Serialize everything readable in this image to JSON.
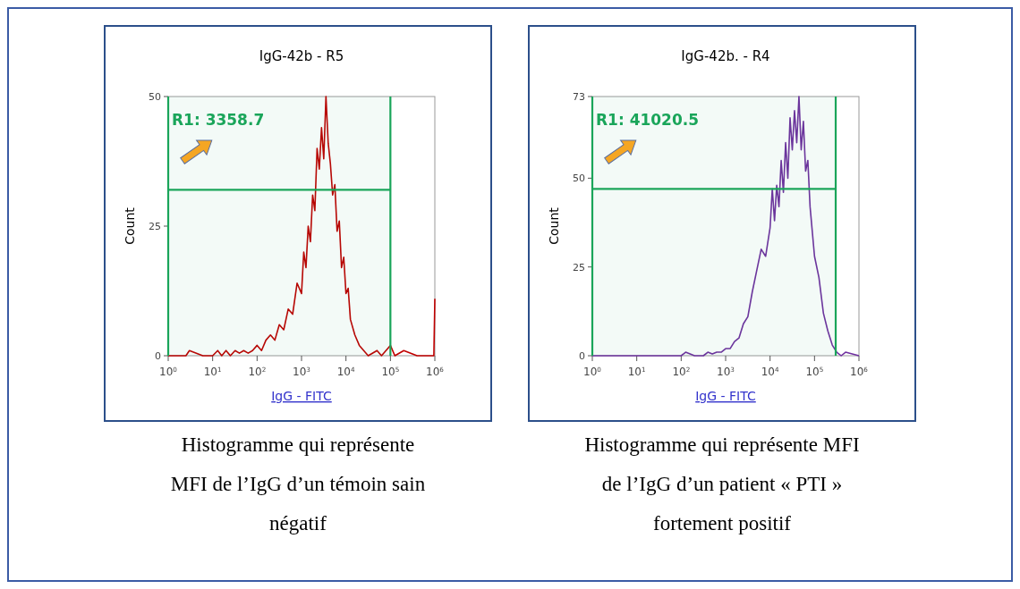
{
  "chart_data": [
    {
      "type": "line",
      "title": "IgG-42b - R5",
      "xlabel": "IgG - FITC",
      "ylabel": "Count",
      "log": "x",
      "xlim": [
        1,
        1000000
      ],
      "ylim": [
        0,
        50
      ],
      "yticks": [
        0,
        25,
        50
      ],
      "xticks": [
        {
          "value": 1,
          "label": "10$^{0}$"
        },
        {
          "value": 10,
          "label": "10$^{1}$"
        },
        {
          "value": 100,
          "label": "10$^{2}$"
        },
        {
          "value": 1000,
          "label": "10$^{3}$"
        },
        {
          "value": 10000,
          "label": "10$^{4}$"
        },
        {
          "value": 100000,
          "label": "10$^{5}$"
        },
        {
          "value": 1000000,
          "label": "10$^{6}$"
        }
      ],
      "bands": [
        {
          "axis": "x",
          "from": 1,
          "to": 100000,
          "label": "R1: 3358.7",
          "color": "#1aa55a"
        }
      ],
      "ref_lines": [
        {
          "axis": "x",
          "value": 100000,
          "color": "#1aa55a"
        },
        {
          "axis": "y",
          "value": 32,
          "color": "#1aa55a"
        }
      ],
      "series": [
        {
          "color": "#c00000",
          "x": [
            1,
            2.5,
            3,
            6,
            10,
            13,
            16,
            20,
            25,
            32,
            40,
            50,
            63,
            79,
            100,
            126,
            158,
            200,
            251,
            316,
            398,
            501,
            631,
            794,
            1000,
            1122,
            1259,
            1413,
            1585,
            1778,
            1995,
            2239,
            2512,
            2818,
            3162,
            3548,
            3981,
            4467,
            5012,
            5623,
            6310,
            7079,
            7943,
            8913,
            10000,
            11220,
            12589,
            15849,
            19953,
            25119,
            31623,
            50000,
            63096,
            100000,
            125893,
            200000,
            398107,
            950000,
            1000000
          ],
          "values": [
            0,
            0,
            1,
            0,
            0,
            1,
            0,
            1,
            0,
            1,
            0.5,
            1,
            0.5,
            1,
            2,
            1,
            3,
            4,
            3,
            6,
            5,
            9,
            8,
            14,
            12,
            20,
            17,
            25,
            22,
            31,
            28,
            40,
            36,
            44,
            38,
            50,
            41,
            37,
            31,
            33,
            24,
            26,
            17,
            19,
            12,
            13,
            7,
            4,
            2,
            1,
            0,
            1,
            0,
            2,
            0,
            1,
            0,
            0,
            11
          ]
        }
      ],
      "annotations": [
        "Histogramme qui représente MFI de l’IgG  d’un témoin sain négatif"
      ]
    },
    {
      "type": "line",
      "title": "IgG-42b. - R4",
      "xlabel": "IgG - FITC",
      "ylabel": "Count",
      "log": "x",
      "xlim": [
        1,
        1000000
      ],
      "ylim": [
        0,
        73
      ],
      "yticks": [
        0,
        25,
        50,
        73
      ],
      "xticks": [
        {
          "value": 1,
          "label": "10$^{0}$"
        },
        {
          "value": 10,
          "label": "10$^{1}$"
        },
        {
          "value": 100,
          "label": "10$^{2}$"
        },
        {
          "value": 1000,
          "label": "10$^{3}$"
        },
        {
          "value": 10000,
          "label": "10$^{4}$"
        },
        {
          "value": 100000,
          "label": "10$^{5}$"
        },
        {
          "value": 1000000,
          "label": "10$^{6}$"
        }
      ],
      "bands": [
        {
          "axis": "x",
          "from": 1,
          "to": 300000,
          "label": "R1: 41020.5",
          "color": "#1aa55a"
        }
      ],
      "ref_lines": [
        {
          "axis": "x",
          "value": 300000,
          "color": "#1aa55a"
        },
        {
          "axis": "y",
          "value": 47,
          "color": "#1aa55a"
        }
      ],
      "series": [
        {
          "color": "#7030a0",
          "x": [
            1,
            100,
            126,
            200,
            316,
            398,
            501,
            631,
            794,
            1000,
            1259,
            1585,
            1995,
            2512,
            3162,
            3981,
            5012,
            6310,
            7943,
            10000,
            11220,
            12589,
            14125,
            15849,
            17783,
            19953,
            22387,
            25119,
            28184,
            31623,
            35481,
            39811,
            44668,
            50119,
            56234,
            63096,
            70795,
            79433,
            89125,
            100000,
            125893,
            158489,
            199526,
            251189,
            316228,
            398107,
            500000,
            1000000
          ],
          "values": [
            0,
            0,
            1,
            0,
            0,
            1,
            0.5,
            1,
            1,
            2,
            2,
            4,
            5,
            9,
            11,
            18,
            24,
            30,
            28,
            36,
            47,
            38,
            48,
            42,
            55,
            46,
            60,
            50,
            67,
            58,
            69,
            60,
            73,
            58,
            66,
            52,
            55,
            42,
            35,
            28,
            22,
            12,
            7,
            3,
            1,
            0,
            1,
            0
          ]
        }
      ],
      "annotations": [
        "Histogramme qui représente MFI de l’IgG d’un patient « PTI » fortement positif"
      ]
    }
  ]
}
